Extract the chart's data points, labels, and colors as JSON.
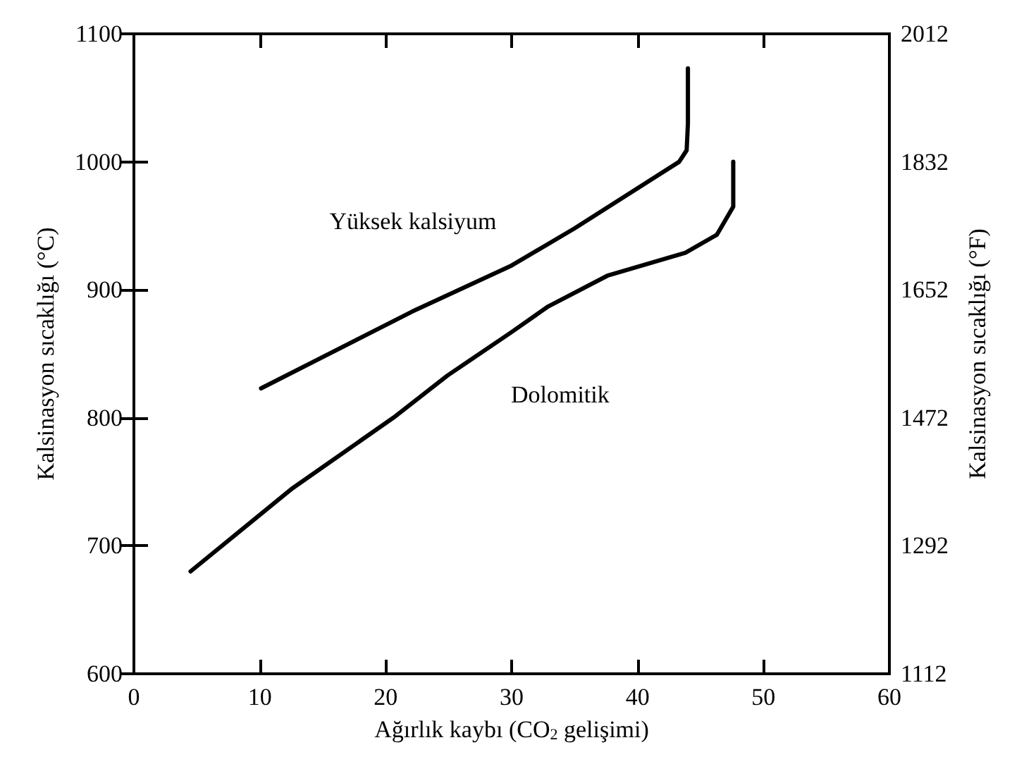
{
  "chart_data": {
    "type": "line",
    "xlabel": "Ağırlık kaybı (CO$_{2}$ gelişimi)",
    "ylabel": "Kalsinasyon sıcaklığı (°C)",
    "y2label": "Kalsinasyon sıcaklığı (°F)",
    "series": [
      {
        "name": "Yüksek kalsiyum",
        "color": "#000000",
        "x": [
          10.1,
          22.1,
          30,
          35,
          43.3,
          43.9,
          44,
          44
        ],
        "values": [
          823,
          883,
          919,
          948,
          1000,
          1009,
          1030,
          1073
        ]
      },
      {
        "name": "Dolomitik",
        "color": "#000000",
        "x": [
          4.5,
          12.6,
          20.6,
          24.9,
          30,
          32.9,
          37.6,
          43.8,
          46.3,
          47.6,
          47.6
        ],
        "values": [
          680,
          745,
          800,
          833,
          867,
          887,
          911,
          929,
          943,
          965,
          1000
        ]
      }
    ],
    "xlim": [
      0,
      60
    ],
    "xticks": [
      0,
      10,
      20,
      30,
      40,
      50,
      60
    ],
    "ylim": [
      600,
      1100
    ],
    "yticks": [
      600,
      700,
      800,
      900,
      1000,
      1100
    ],
    "y2lim": [
      1112,
      2012
    ],
    "y2ticks": [
      1112,
      1292,
      1472,
      1652,
      1832,
      2012
    ],
    "grid": false,
    "legend": false,
    "marker": "none",
    "line_style": "solid"
  }
}
